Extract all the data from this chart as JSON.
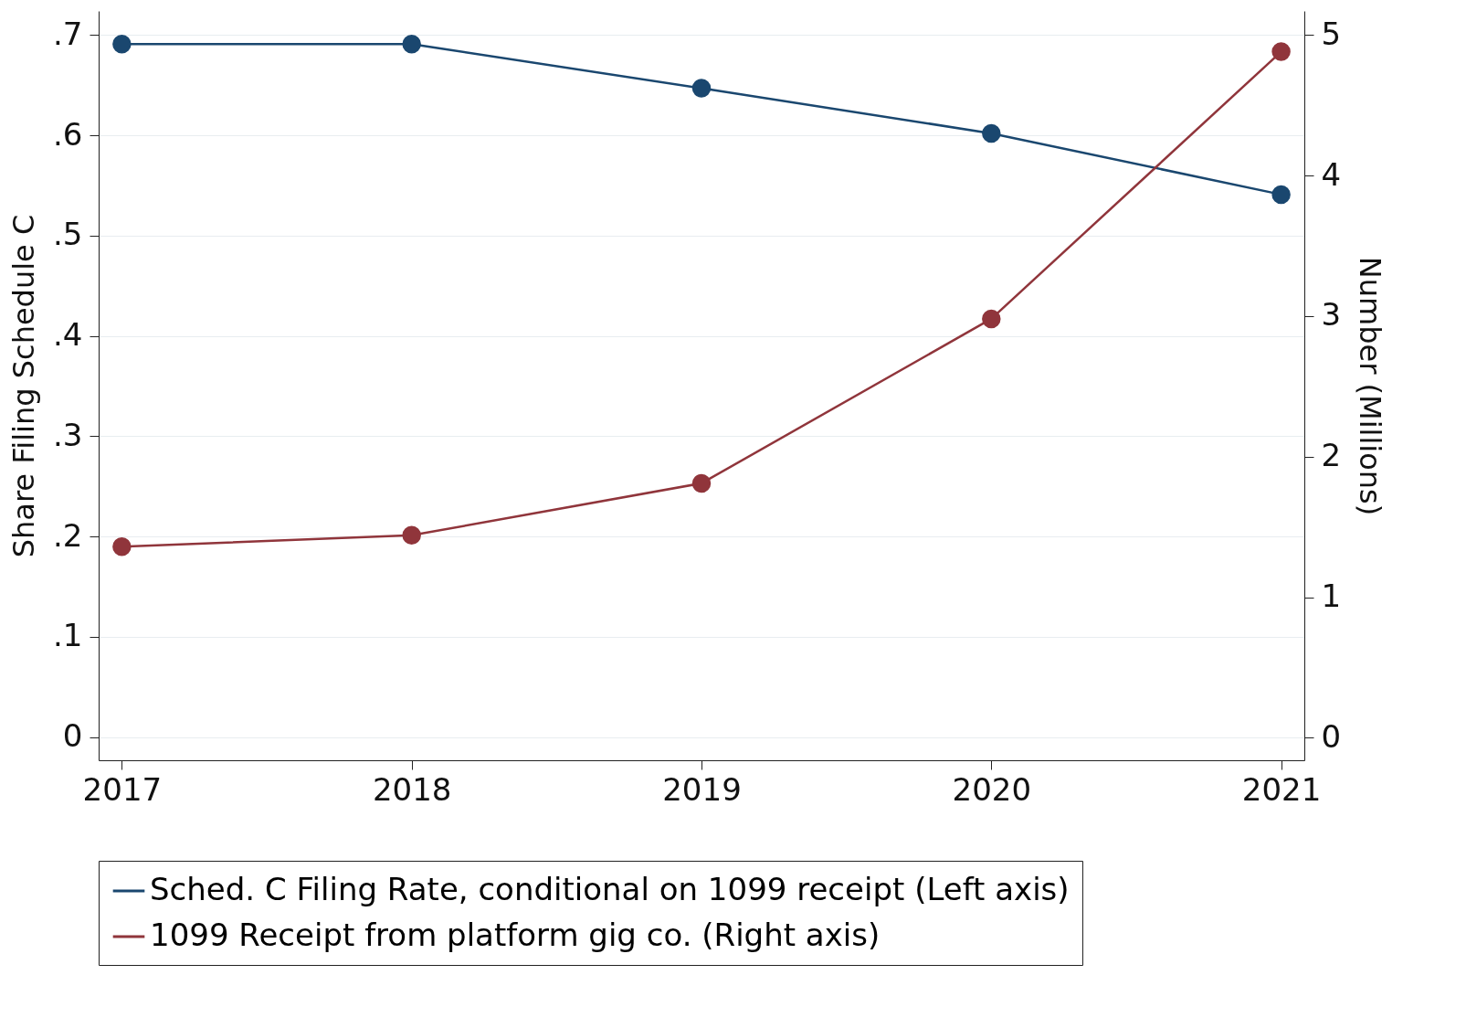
{
  "chart_data": {
    "type": "line",
    "ylabel": "Share Filing Schedule C",
    "y2label": "Number (Millions)",
    "x": [
      2017,
      2018,
      2019,
      2020,
      2021
    ],
    "xlim": [
      2016.92,
      2021.08
    ],
    "xticks": [
      2017,
      2018,
      2019,
      2020,
      2021
    ],
    "ylim": [
      -0.023,
      0.724
    ],
    "yticks": [
      0,
      {
        "value": 0.1,
        "label": ".1"
      },
      {
        "value": 0.2,
        "label": ".2"
      },
      {
        "value": 0.3,
        "label": ".3"
      },
      {
        "value": 0.4,
        "label": ".4"
      },
      {
        "value": 0.5,
        "label": ".5"
      },
      {
        "value": 0.6,
        "label": ".6"
      },
      {
        "value": 0.7,
        "label": ".7"
      }
    ],
    "y2lim": [
      -0.16,
      5.17
    ],
    "y2ticks": [
      0,
      1,
      2,
      3,
      4,
      5
    ],
    "series": [
      {
        "name": "Sched. C Filing Rate, conditional on 1099 receipt (Left axis)",
        "color": "#1a476f",
        "values": [
          0.691,
          0.691,
          0.647,
          0.602,
          0.541
        ]
      },
      {
        "name": "1099 Receipt from platform gig co. (Right axis)",
        "color": "#90353b",
        "axis": "y2",
        "values": [
          1.36,
          1.44,
          1.81,
          2.98,
          4.88
        ]
      }
    ],
    "grid": "y",
    "legend": "bottom",
    "marker": "circle",
    "line_style": "solid"
  }
}
